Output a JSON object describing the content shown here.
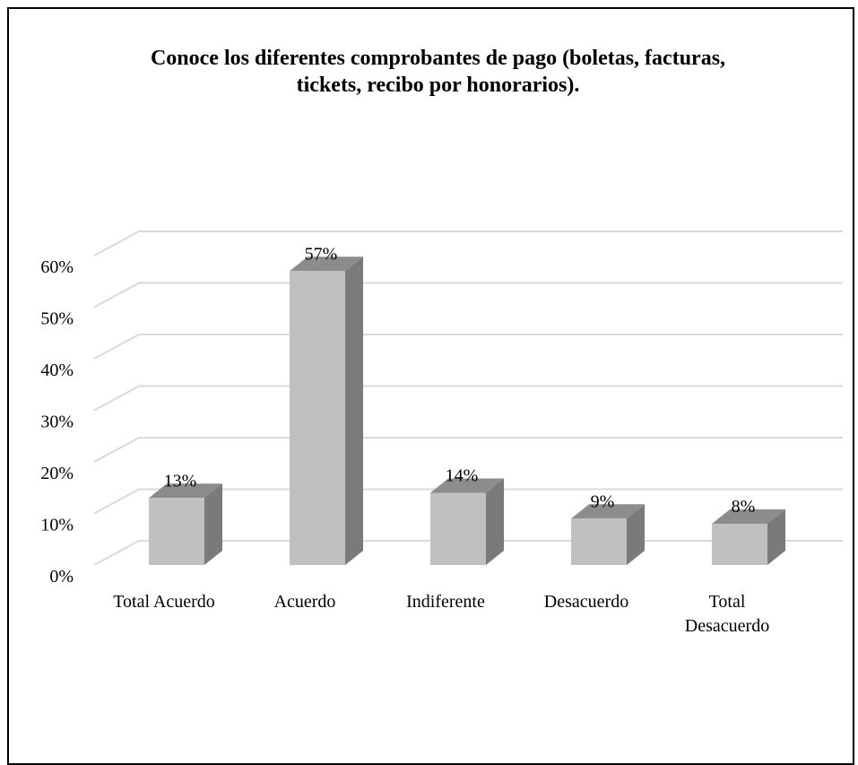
{
  "chart_data": {
    "type": "bar",
    "title": "Conoce los diferentes comprobantes de pago (boletas, facturas, tickets, recibo por honorarios).",
    "title_lines": [
      "Conoce los diferentes comprobantes de pago (boletas, facturas,",
      "tickets, recibo por honorarios)."
    ],
    "categories": [
      [
        "Total Acuerdo"
      ],
      [
        "Acuerdo"
      ],
      [
        "Indiferente"
      ],
      [
        "Desacuerdo"
      ],
      [
        "Total",
        "Desacuerdo"
      ]
    ],
    "values": [
      13,
      57,
      14,
      9,
      8
    ],
    "value_labels": [
      "13%",
      "57%",
      "14%",
      "9%",
      "8%"
    ],
    "yticks": [
      "0%",
      "10%",
      "20%",
      "30%",
      "40%",
      "50%",
      "60%"
    ],
    "ylim": [
      0,
      60
    ],
    "grid": true,
    "style": "3d-column",
    "colors": {
      "bar_front": "#c0c0c0",
      "bar_top": "#8c8c8c",
      "bar_side": "#7a7a7a",
      "grid": "#d9d9d9"
    }
  }
}
